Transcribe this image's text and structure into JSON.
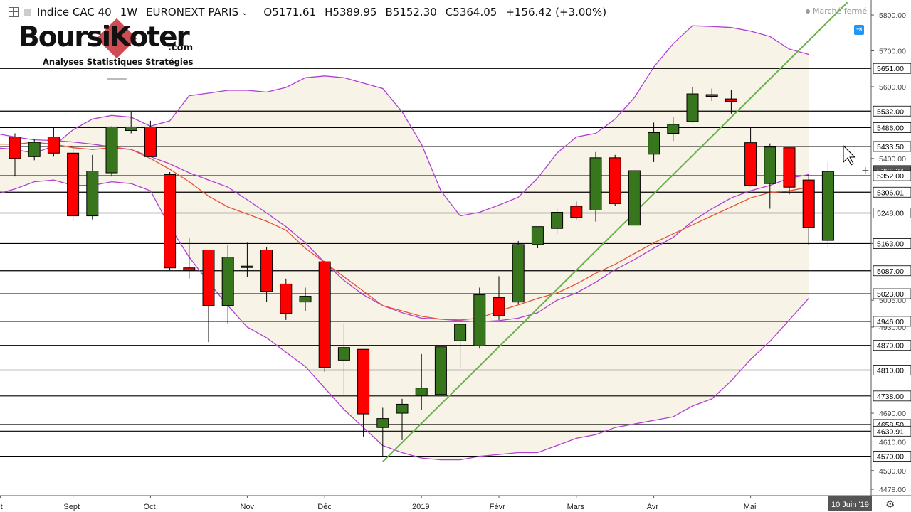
{
  "header": {
    "symbol": "Indice CAC 40",
    "interval": "1W",
    "exchange": "EURONEXT PARIS",
    "open": "O5171.61",
    "high": "H5389.95",
    "low": "B5152.30",
    "close": "C5364.05",
    "change": "+156.42 (+3.00%)",
    "market_status": "Marché fermé"
  },
  "logo": {
    "brand": "BoursiKoter",
    "domain": ".com",
    "tagline": "Analyses Statistiques Stratégies"
  },
  "footer": {
    "date_label": "10 Juin '19"
  },
  "colors": {
    "up": "#38761d",
    "down": "#ff0000",
    "bollinger": "#b03fd4",
    "ma": "#e8513a",
    "trendline": "#6ab04c",
    "band_fill": "#f7f3e6"
  },
  "chart_data": {
    "type": "candlestick",
    "y_axis": {
      "range": [
        4478,
        5810
      ],
      "ticks": [
        5800,
        5700,
        5600,
        5400,
        5163,
        5005,
        4930,
        4810,
        4690,
        4610,
        4530,
        4478
      ],
      "highlighted_labels": [
        5651,
        5532,
        5486,
        5433.5,
        5366.24,
        5352,
        5306.01,
        5248,
        5163,
        5087,
        5023,
        4946,
        4879,
        4810,
        4738,
        4658.5,
        4639.91,
        4570
      ]
    },
    "x_axis": {
      "labels": [
        "t",
        "Sept",
        "Oct",
        "Nov",
        "Déc",
        "2019",
        "Févr",
        "Mars",
        "Avr",
        "Mai"
      ]
    },
    "horizontal_levels": [
      5651,
      5532,
      5486,
      5433.5,
      5352,
      5306.01,
      5248,
      5163,
      5087,
      5023,
      4946,
      4879,
      4810,
      4738,
      4658.5,
      4639.91,
      4570
    ],
    "candles": [
      {
        "o": 5460,
        "h": 5470,
        "l": 5350,
        "c": 5400
      },
      {
        "o": 5405,
        "h": 5455,
        "l": 5395,
        "c": 5445
      },
      {
        "o": 5460,
        "h": 5485,
        "l": 5405,
        "c": 5415
      },
      {
        "o": 5415,
        "h": 5435,
        "l": 5225,
        "c": 5240
      },
      {
        "o": 5240,
        "h": 5410,
        "l": 5230,
        "c": 5365
      },
      {
        "o": 5360,
        "h": 5490,
        "l": 5350,
        "c": 5488
      },
      {
        "o": 5478,
        "h": 5530,
        "l": 5470,
        "c": 5488
      },
      {
        "o": 5488,
        "h": 5505,
        "l": 5405,
        "c": 5405
      },
      {
        "o": 5355,
        "h": 5362,
        "l": 5090,
        "c": 5095
      },
      {
        "o": 5095,
        "h": 5180,
        "l": 5065,
        "c": 5088
      },
      {
        "o": 5145,
        "h": 5145,
        "l": 4888,
        "c": 4990
      },
      {
        "o": 4990,
        "h": 5160,
        "l": 4938,
        "c": 5125
      },
      {
        "o": 5100,
        "h": 5165,
        "l": 5070,
        "c": 5100
      },
      {
        "o": 5145,
        "h": 5152,
        "l": 5000,
        "c": 5030
      },
      {
        "o": 5050,
        "h": 5065,
        "l": 4950,
        "c": 4968
      },
      {
        "o": 5000,
        "h": 5040,
        "l": 4975,
        "c": 5016
      },
      {
        "o": 5112,
        "h": 5115,
        "l": 4805,
        "c": 4818
      },
      {
        "o": 4838,
        "h": 4940,
        "l": 4742,
        "c": 4873
      },
      {
        "o": 4868,
        "h": 4868,
        "l": 4625,
        "c": 4688
      },
      {
        "o": 4650,
        "h": 4705,
        "l": 4570,
        "c": 4675
      },
      {
        "o": 4690,
        "h": 4730,
        "l": 4615,
        "c": 4715
      },
      {
        "o": 4740,
        "h": 4855,
        "l": 4700,
        "c": 4760
      },
      {
        "o": 4742,
        "h": 4875,
        "l": 4742,
        "c": 4875
      },
      {
        "o": 4892,
        "h": 4930,
        "l": 4815,
        "c": 4938
      },
      {
        "o": 4878,
        "h": 5040,
        "l": 4870,
        "c": 5020
      },
      {
        "o": 5012,
        "h": 5072,
        "l": 4950,
        "c": 4962
      },
      {
        "o": 5000,
        "h": 5170,
        "l": 4995,
        "c": 5160
      },
      {
        "o": 5160,
        "h": 5210,
        "l": 5150,
        "c": 5210
      },
      {
        "o": 5205,
        "h": 5260,
        "l": 5190,
        "c": 5250
      },
      {
        "o": 5267,
        "h": 5280,
        "l": 5230,
        "c": 5236
      },
      {
        "o": 5256,
        "h": 5418,
        "l": 5224,
        "c": 5402
      },
      {
        "o": 5402,
        "h": 5410,
        "l": 5268,
        "c": 5274
      },
      {
        "o": 5214,
        "h": 5366,
        "l": 5214,
        "c": 5366
      },
      {
        "o": 5412,
        "h": 5500,
        "l": 5390,
        "c": 5472
      },
      {
        "o": 5470,
        "h": 5515,
        "l": 5449,
        "c": 5495
      },
      {
        "o": 5503,
        "h": 5600,
        "l": 5500,
        "c": 5580
      },
      {
        "o": 5578,
        "h": 5595,
        "l": 5560,
        "c": 5573
      },
      {
        "o": 5566,
        "h": 5590,
        "l": 5525,
        "c": 5559
      },
      {
        "o": 5444,
        "h": 5488,
        "l": 5322,
        "c": 5325
      },
      {
        "o": 5330,
        "h": 5442,
        "l": 5260,
        "c": 5432
      },
      {
        "o": 5430,
        "h": 5430,
        "l": 5300,
        "c": 5320
      },
      {
        "o": 5340,
        "h": 5355,
        "l": 5160,
        "c": 5208
      },
      {
        "o": 5171.61,
        "h": 5389.95,
        "l": 5152.3,
        "c": 5364.05
      }
    ],
    "bollinger_upper": [
      5430,
      5425,
      5415,
      5435,
      5480,
      5510,
      5520,
      5515,
      5490,
      5505,
      5575,
      5582,
      5590,
      5590,
      5585,
      5598,
      5625,
      5630,
      5625,
      5610,
      5595,
      5530,
      5440,
      5310,
      5240,
      5250,
      5270,
      5292,
      5345,
      5415,
      5460,
      5470,
      5510,
      5570,
      5655,
      5720,
      5770,
      5768,
      5765,
      5755,
      5740,
      5705,
      5690
    ],
    "bollinger_lower": [
      5300,
      5315,
      5335,
      5340,
      5325,
      5325,
      5335,
      5330,
      5310,
      5210,
      5125,
      5055,
      4990,
      4930,
      4900,
      4860,
      4820,
      4760,
      4700,
      4650,
      4600,
      4580,
      4565,
      4560,
      4560,
      4570,
      4575,
      4580,
      4580,
      4600,
      4620,
      4630,
      4650,
      4660,
      4670,
      4680,
      4710,
      4730,
      4780,
      4840,
      4890,
      4950,
      5010
    ],
    "bollinger_middle": [
      5470,
      5460,
      5452,
      5450,
      5446,
      5440,
      5432,
      5425,
      5405,
      5385,
      5360,
      5340,
      5320,
      5285,
      5248,
      5210,
      5165,
      5110,
      5060,
      5020,
      4990,
      4970,
      4955,
      4952,
      4948,
      4945,
      4948,
      4955,
      4970,
      5005,
      5025,
      5055,
      5090,
      5118,
      5150,
      5180,
      5225,
      5260,
      5290,
      5310,
      5325,
      5345,
      5355
    ],
    "moving_average": [
      5440,
      5440,
      5445,
      5440,
      5430,
      5425,
      5430,
      5425,
      5400,
      5370,
      5335,
      5295,
      5265,
      5245,
      5225,
      5200,
      5150,
      5110,
      5070,
      5030,
      4990,
      4975,
      4960,
      4952,
      4950,
      4955,
      4975,
      4992,
      5010,
      5025,
      5050,
      5080,
      5105,
      5135,
      5165,
      5190,
      5215,
      5240,
      5265,
      5290,
      5305,
      5310,
      5320
    ],
    "trendline": {
      "from": {
        "index": 19,
        "value": 4555
      },
      "to": {
        "index": 43,
        "value": 5835
      }
    }
  }
}
